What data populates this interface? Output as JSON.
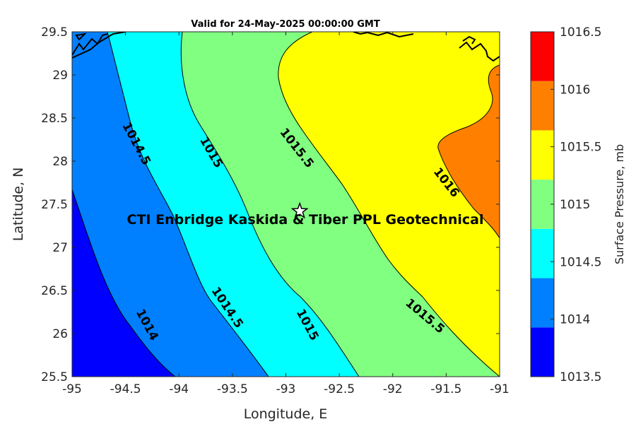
{
  "chart_data": {
    "type": "contour-map",
    "title": "Valid for 24-May-2025 00:00:00 GMT",
    "xlabel": "Longitude, E",
    "ylabel": "Latitude, N",
    "xlim": [
      -95,
      -91
    ],
    "ylim": [
      25.5,
      29.5
    ],
    "xticks": [
      "-95",
      "-94.5",
      "-94",
      "-93.5",
      "-93",
      "-92.5",
      "-92",
      "-91.5",
      "-91"
    ],
    "yticks": [
      "29.5",
      "29",
      "28.5",
      "28",
      "27.5",
      "27",
      "26.5",
      "26",
      "25.5"
    ],
    "colorbar": {
      "label": "Surface Pressure, mb",
      "ticks": [
        "1016.5",
        "1016",
        "1015.5",
        "1015",
        "1014.5",
        "1014",
        "1013.5"
      ],
      "levels": [
        1013.5,
        1014,
        1014.5,
        1015,
        1015.5,
        1016,
        1016.5
      ],
      "colors": [
        "#0000ff",
        "#0080ff",
        "#00ffff",
        "#80ff80",
        "#ffff00",
        "#ff8000",
        "#ff0000"
      ]
    },
    "contour_labels": [
      {
        "text": "1014.5",
        "lon": -94.4,
        "lat": 28.2
      },
      {
        "text": "1015",
        "lon": -93.7,
        "lat": 28.1
      },
      {
        "text": "1015.5",
        "lon": -92.9,
        "lat": 28.15
      },
      {
        "text": "1016",
        "lon": -91.5,
        "lat": 27.75
      },
      {
        "text": "1014",
        "lon": -94.3,
        "lat": 26.1
      },
      {
        "text": "1014.5",
        "lon": -93.55,
        "lat": 26.3
      },
      {
        "text": "1015",
        "lon": -92.8,
        "lat": 26.1
      },
      {
        "text": "1015.5",
        "lon": -91.7,
        "lat": 26.2
      }
    ],
    "site": {
      "label": "CTI Enbridge  Kaskida & Tiber PPL Geotechnical",
      "lon": -92.87,
      "lat": 27.42,
      "marker": "star"
    }
  }
}
